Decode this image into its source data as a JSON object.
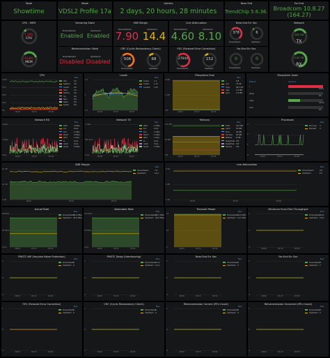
{
  "colors": {
    "green": "#56a64b",
    "yellow": "#e0b400",
    "orange": "#ff780a",
    "red": "#e02f44",
    "panel": "#161719",
    "text": "#d8d9da"
  },
  "row1": {
    "state": {
      "title": "State",
      "value": "Showtime"
    },
    "mode": {
      "title": "Mode",
      "value": "VDSL2 Profile 17a"
    },
    "uptime": {
      "title": "Uptime",
      "value": "2 days, 20 hours, 28 minutes"
    },
    "nearend": {
      "title": "Near End",
      "value": "TrendChip 5.6.36.0"
    },
    "farend": {
      "title": "Far End",
      "value": "Broadcom 10.8.27",
      "sub": "(164.27)"
    }
  },
  "row2": {
    "cpumem": {
      "title": "CPU - MEM",
      "cpu_value": "7.16%",
      "cpu_label": "CPU",
      "mem_value": "43.8%",
      "mem_label": "MEM",
      "cpu_pct": 7.16,
      "mem_pct": 43.8
    },
    "vectoring": {
      "title": "Vectoring State",
      "down_label": "Downstream",
      "up_label": "Upstream",
      "down": "Enabled",
      "up": "Enabled"
    },
    "snr": {
      "title": "SNR Margin",
      "down_label": "Downstream",
      "up_label": "Upstream",
      "down": "7.90",
      "up": "14.4"
    },
    "attenuation": {
      "title": "Line Attenuation",
      "down_label": "Downstream",
      "up_label": "Upstream",
      "down": "4.60",
      "up": "8.10"
    },
    "nearES": {
      "title": "Near-End Err Sec",
      "down_label": "Downstream",
      "up_label": "Upstream",
      "down": "378",
      "up": "6",
      "down_pct": 70,
      "up_pct": 5
    },
    "network": {
      "title": "Network",
      "tx_value": "336 GB",
      "tx_label": "TX",
      "rx_value": "5.63 TB",
      "rx_label": "RX",
      "tx_pct": 40,
      "rx_pct": 85
    }
  },
  "row3": {
    "retrans": {
      "title": "Retransmission State",
      "down_label": "Downstream",
      "up_label": "Upstream",
      "down": "Disabled",
      "up": "Disabled"
    },
    "crc": {
      "title": "CRC (Cyclic Redundancy Check)",
      "down_value": "506",
      "up_value": "68",
      "down_label": "Downstream",
      "up_label": "Upstream",
      "down_pct": 80,
      "up_pct": 15
    },
    "fec": {
      "title": "FEC (Forward Error Correction)",
      "down_value": "27044",
      "up_value": "152",
      "down_label": "Downstream",
      "up_label": "Upstream",
      "down_pct": 90,
      "up_pct": 12
    },
    "farES": {
      "title": "Far-End Err Sec",
      "down_value": "0",
      "up_value": "0",
      "down_label": "Downstream",
      "up_label": "Upstream"
    }
  },
  "graphs": {
    "cpu": {
      "title": "CPU",
      "legend_head": "Max",
      "legend": [
        [
          "Idle",
          "#56a64b",
          "1%"
        ],
        [
          "System",
          "#e0b400",
          "4%"
        ],
        [
          "Iowait",
          "#5794f2",
          "0%"
        ],
        [
          "User",
          "#e02f44",
          "1%"
        ],
        [
          "Softirq",
          "#ff780a",
          "4%"
        ],
        [
          "Irq",
          "#8ab8ff",
          "0%"
        ],
        [
          "Nice",
          "#b877d9",
          "0%"
        ],
        [
          "Steal",
          "#96d98d",
          "0%"
        ],
        [
          "Guest",
          "#f2cc0c",
          "0%"
        ]
      ],
      "yticks": [
        "100%",
        "75%",
        "50%",
        "25%",
        "0%"
      ],
      "xticks": [
        "18:00",
        "18:15",
        "18:30"
      ]
    },
    "loads": {
      "title": "Loads",
      "legend_head": "Max",
      "legend": [
        [
          "Load1",
          "#56a64b",
          "1.3"
        ],
        [
          "Load5",
          "#e0b400",
          "1.15"
        ],
        [
          "Load15",
          "#5794f2",
          "1.05"
        ]
      ],
      "yticks": [
        "1.5",
        "1",
        "0.5"
      ],
      "xticks": [
        "18:00",
        "18:15",
        "18:30"
      ]
    },
    "fs": {
      "title": "Filesystem Free",
      "legend_head": "Max",
      "legend": [
        [
          "/",
          "#56a64b",
          "0 B"
        ],
        [
          "/var",
          "#e0b400",
          "70 kB"
        ],
        [
          "/tmp",
          "#5794f2",
          "96.5 kB"
        ],
        [
          "/dev",
          "#e02f44",
          "2.2 MB"
        ],
        [
          "/proc",
          "#ff780a",
          "2.2 MB"
        ]
      ],
      "yticks": [
        "2 MB",
        "1 MB",
        "0 B"
      ],
      "xticks": [
        "18:00",
        "18:15",
        "18:30"
      ]
    },
    "fsused": {
      "title": "Filesystem Used",
      "head_mount": "Mount",
      "head_used": "Used %",
      "rows": [
        [
          "/",
          "100%",
          100,
          "#e02f44"
        ],
        [
          "/tmp",
          "0%",
          0,
          "#56a64b"
        ],
        [
          "/dev",
          "33.3%",
          33,
          "#56a64b"
        ],
        [
          "/var",
          "0%",
          0,
          "#56a64b"
        ]
      ]
    },
    "netrx": {
      "title": "Network RX",
      "legend_head": "Max",
      "legend": [
        [
          "eth0",
          "#56a64b",
          "3 Mb/s"
        ],
        [
          "br1",
          "#e0b400",
          "0 b/s"
        ],
        [
          "br0",
          "#5794f2",
          "1 Mb/s"
        ],
        [
          "ptm0",
          "#e02f44",
          "4 Mb/s"
        ],
        [
          "eth1",
          "#ff780a",
          "1 kb/s"
        ],
        [
          "lo",
          "#8ab8ff",
          "0 b/s"
        ],
        [
          "nas8",
          "#b877d9",
          "0 b/s"
        ],
        [
          "wan0",
          "#96d98d",
          "5 Mb/s"
        ]
      ],
      "yticks": [
        "4 Mb/s",
        "2 Mb/s",
        "0 b/s"
      ],
      "xticks": [
        "18:00",
        "18:15",
        "18:30"
      ]
    },
    "nettx": {
      "title": "Network TX",
      "legend_head": "Max",
      "legend": [
        [
          "eth0",
          "#56a64b",
          "1 Mb/s"
        ],
        [
          "br1",
          "#e0b400",
          "0 b/s"
        ],
        [
          "br0",
          "#5794f2",
          "1 Mb/s"
        ],
        [
          "ptm0",
          "#e02f44",
          "1 Mb/s"
        ],
        [
          "eth1",
          "#ff780a",
          "1 kb/s"
        ],
        [
          "lo",
          "#8ab8ff",
          "0 b/s"
        ],
        [
          "nas8",
          "#b877d9",
          "0 b/s"
        ],
        [
          "wan0",
          "#96d98d",
          "1 Mb/s"
        ]
      ],
      "yticks": [
        "1 Mb/s",
        "500 kb/s",
        "0 b/s"
      ],
      "xticks": [
        "18:00",
        "18:15",
        "18:30"
      ]
    },
    "memory": {
      "title": "Memory",
      "legend_head": "Max",
      "legend": [
        [
          "Total",
          "#56a64b",
          "120 MB"
        ],
        [
          "Used",
          "#e0b400",
          "52 MB"
        ],
        [
          "Free",
          "#5794f2",
          "64 MB"
        ],
        [
          "Cached",
          "#e02f44",
          "20 MB"
        ],
        [
          "Buffers",
          "#ff780a",
          "8 MB"
        ],
        [
          "SwapTotal",
          "#8ab8ff",
          "0 B"
        ],
        [
          "SwapFree",
          "#b877d9",
          "0 B"
        ],
        [
          "Shared",
          "#96d98d",
          "0 B"
        ]
      ],
      "yticks": [
        "120 MB",
        "60 MB",
        "0 B"
      ],
      "xticks": [
        "18:00",
        "18:15",
        "18:30"
      ]
    },
    "proc": {
      "title": "Processes",
      "legend_head": "Max",
      "legend": [
        [
          "Running",
          "#56a64b",
          "3"
        ],
        [
          "Blocked",
          "#e0b400",
          "0"
        ]
      ],
      "yticks": [
        "3",
        "2",
        "1",
        "0"
      ],
      "xticks": [
        "18:00",
        "18:15",
        "18:30"
      ]
    },
    "snr": {
      "title": "SNR Margin",
      "legend_head": "Max",
      "legend": [
        [
          "Downstream",
          "#56a64b",
          "7.9"
        ],
        [
          "Upstream",
          "#e0b400",
          "14.4"
        ]
      ],
      "yticks": [
        "15 dB",
        "10 dB",
        "5 dB"
      ],
      "xticks": [
        "18:00",
        "18:15",
        "18:30"
      ]
    },
    "atten": {
      "title": "Line Attenuation",
      "legend_head": "Max",
      "legend": [
        [
          "Downstream",
          "#56a64b",
          "4.6"
        ],
        [
          "Upstream",
          "#e0b400",
          "8.1"
        ]
      ],
      "yticks": [
        "8 dB",
        "6 dB",
        "4 dB"
      ],
      "xticks": [
        "18:00",
        "18:15",
        "18:30"
      ]
    },
    "actual": {
      "title": "Actual Rate",
      "legend_head": "Max",
      "legend": [
        [
          "Downstream",
          "#56a64b",
          "86.9 Mb/s"
        ],
        [
          "Upstream",
          "#e0b400",
          "40.0 Mb/s"
        ]
      ],
      "yticks": [
        "80 Mb/s",
        "40 Mb/s",
        "0 b/s"
      ],
      "xticks": [
        "18:00",
        "18:15",
        "18:30"
      ]
    },
    "attain": {
      "title": "Attainable Rate",
      "legend_head": "Max",
      "legend": [
        [
          "Downstream",
          "#56a64b",
          "96.1 Mb/s"
        ],
        [
          "Upstream",
          "#e0b400",
          "46.0 Mb/s"
        ]
      ],
      "yticks": [
        "100 Mb/s",
        "50 Mb/s",
        "0 b/s"
      ],
      "xticks": [
        "18:00",
        "18:15",
        "18:30"
      ]
    },
    "power": {
      "title": "Transmit Power",
      "legend_head": "Max",
      "legend": [
        [
          "Downstream",
          "#56a64b",
          "14.8 dBm"
        ],
        [
          "Upstream",
          "#e0b400",
          "14.5 dBm"
        ]
      ],
      "yticks": [
        "15",
        "10",
        "5"
      ],
      "xticks": [
        "18:00",
        "18:15",
        "18:30"
      ]
    },
    "mineft": {
      "title": "Minimum Error-Free Throughput",
      "legend_head": "Max",
      "legend": [
        [
          "Downstream",
          "#56a64b",
          "0 b/s"
        ],
        [
          "Upstream",
          "#e0b400",
          "0 b/s"
        ]
      ],
      "yticks": [
        "1",
        "0",
        "-1"
      ],
      "xticks": [
        "18:00",
        "18:15",
        "18:30"
      ]
    },
    "inp": {
      "title": "PMSTC INP (Impulse Noise Protection)",
      "legend_head": "Max",
      "legend": [
        [
          "Downstream",
          "#56a64b",
          "0"
        ],
        [
          "Upstream",
          "#e0b400",
          "0"
        ]
      ],
      "yticks": [
        "1",
        "0",
        "-1"
      ],
      "xticks": [
        "18:00",
        "18:15",
        "18:30"
      ]
    },
    "delay": {
      "title": "PMSTC Delay (Interleaving)",
      "legend_head": "Max",
      "legend": [
        [
          "Downstream",
          "#56a64b",
          "0 ms"
        ],
        [
          "Upstream",
          "#e0b400",
          "0 ms"
        ]
      ],
      "yticks": [
        "1",
        "0",
        "-1"
      ],
      "xticks": [
        "18:00",
        "18:15",
        "18:30"
      ]
    },
    "nees": {
      "title": "Near-End Err Sec",
      "legend_head": "Max",
      "legend": [
        [
          "Downstream",
          "#56a64b",
          "0"
        ],
        [
          "Upstream",
          "#e0b400",
          "0"
        ]
      ],
      "yticks": [
        "1",
        "0",
        "-1"
      ],
      "xticks": [
        "18:00",
        "18:15",
        "18:30"
      ]
    },
    "fees": {
      "title": "Far-End Err Sec",
      "legend_head": "Max",
      "legend": [
        [
          "Downstream",
          "#56a64b",
          "0"
        ],
        [
          "Upstream",
          "#e0b400",
          "0"
        ]
      ],
      "yticks": [
        "1",
        "0",
        "-1"
      ],
      "xticks": [
        "18:00",
        "18:15",
        "18:30"
      ]
    },
    "fecg": {
      "title": "FEC (Forward Error Correction)",
      "legend_head": "Max",
      "legend": [
        [
          "Downstream",
          "#56a64b",
          "0"
        ],
        [
          "Upstream",
          "#e0b400",
          "0"
        ]
      ],
      "yticks": [
        "1",
        "0",
        "-1"
      ],
      "xticks": [
        "18:00",
        "18:15",
        "18:30"
      ]
    },
    "crcg": {
      "title": "CRC (Cyclic Redundancy Check)",
      "legend_head": "Max",
      "legend": [
        [
          "Downstream",
          "#56a64b",
          "0"
        ],
        [
          "Upstream",
          "#e0b400",
          "0"
        ]
      ],
      "yticks": [
        "1",
        "0",
        "-1"
      ],
      "xticks": [
        "18:00",
        "18:15",
        "18:30"
      ]
    },
    "rtxc": {
      "title": "Retransmission Correct (RTx Count)",
      "legend_head": "Max",
      "legend": [
        [
          "Downstream",
          "#56a64b",
          "0"
        ],
        [
          "Upstream",
          "#e0b400",
          "0"
        ]
      ],
      "yticks": [
        "1",
        "0",
        "-1"
      ],
      "xticks": [
        "18:00",
        "18:15",
        "18:30"
      ]
    },
    "rtxu": {
      "title": "Retransmission Uncorrect (RTx Count)",
      "legend_head": "Max",
      "legend": [
        [
          "Downstream",
          "#56a64b",
          "0"
        ],
        [
          "Upstream",
          "#e0b400",
          "0"
        ]
      ],
      "yticks": [
        "1",
        "0",
        "-1"
      ],
      "xticks": [
        "18:00",
        "18:15",
        "18:30"
      ]
    }
  }
}
